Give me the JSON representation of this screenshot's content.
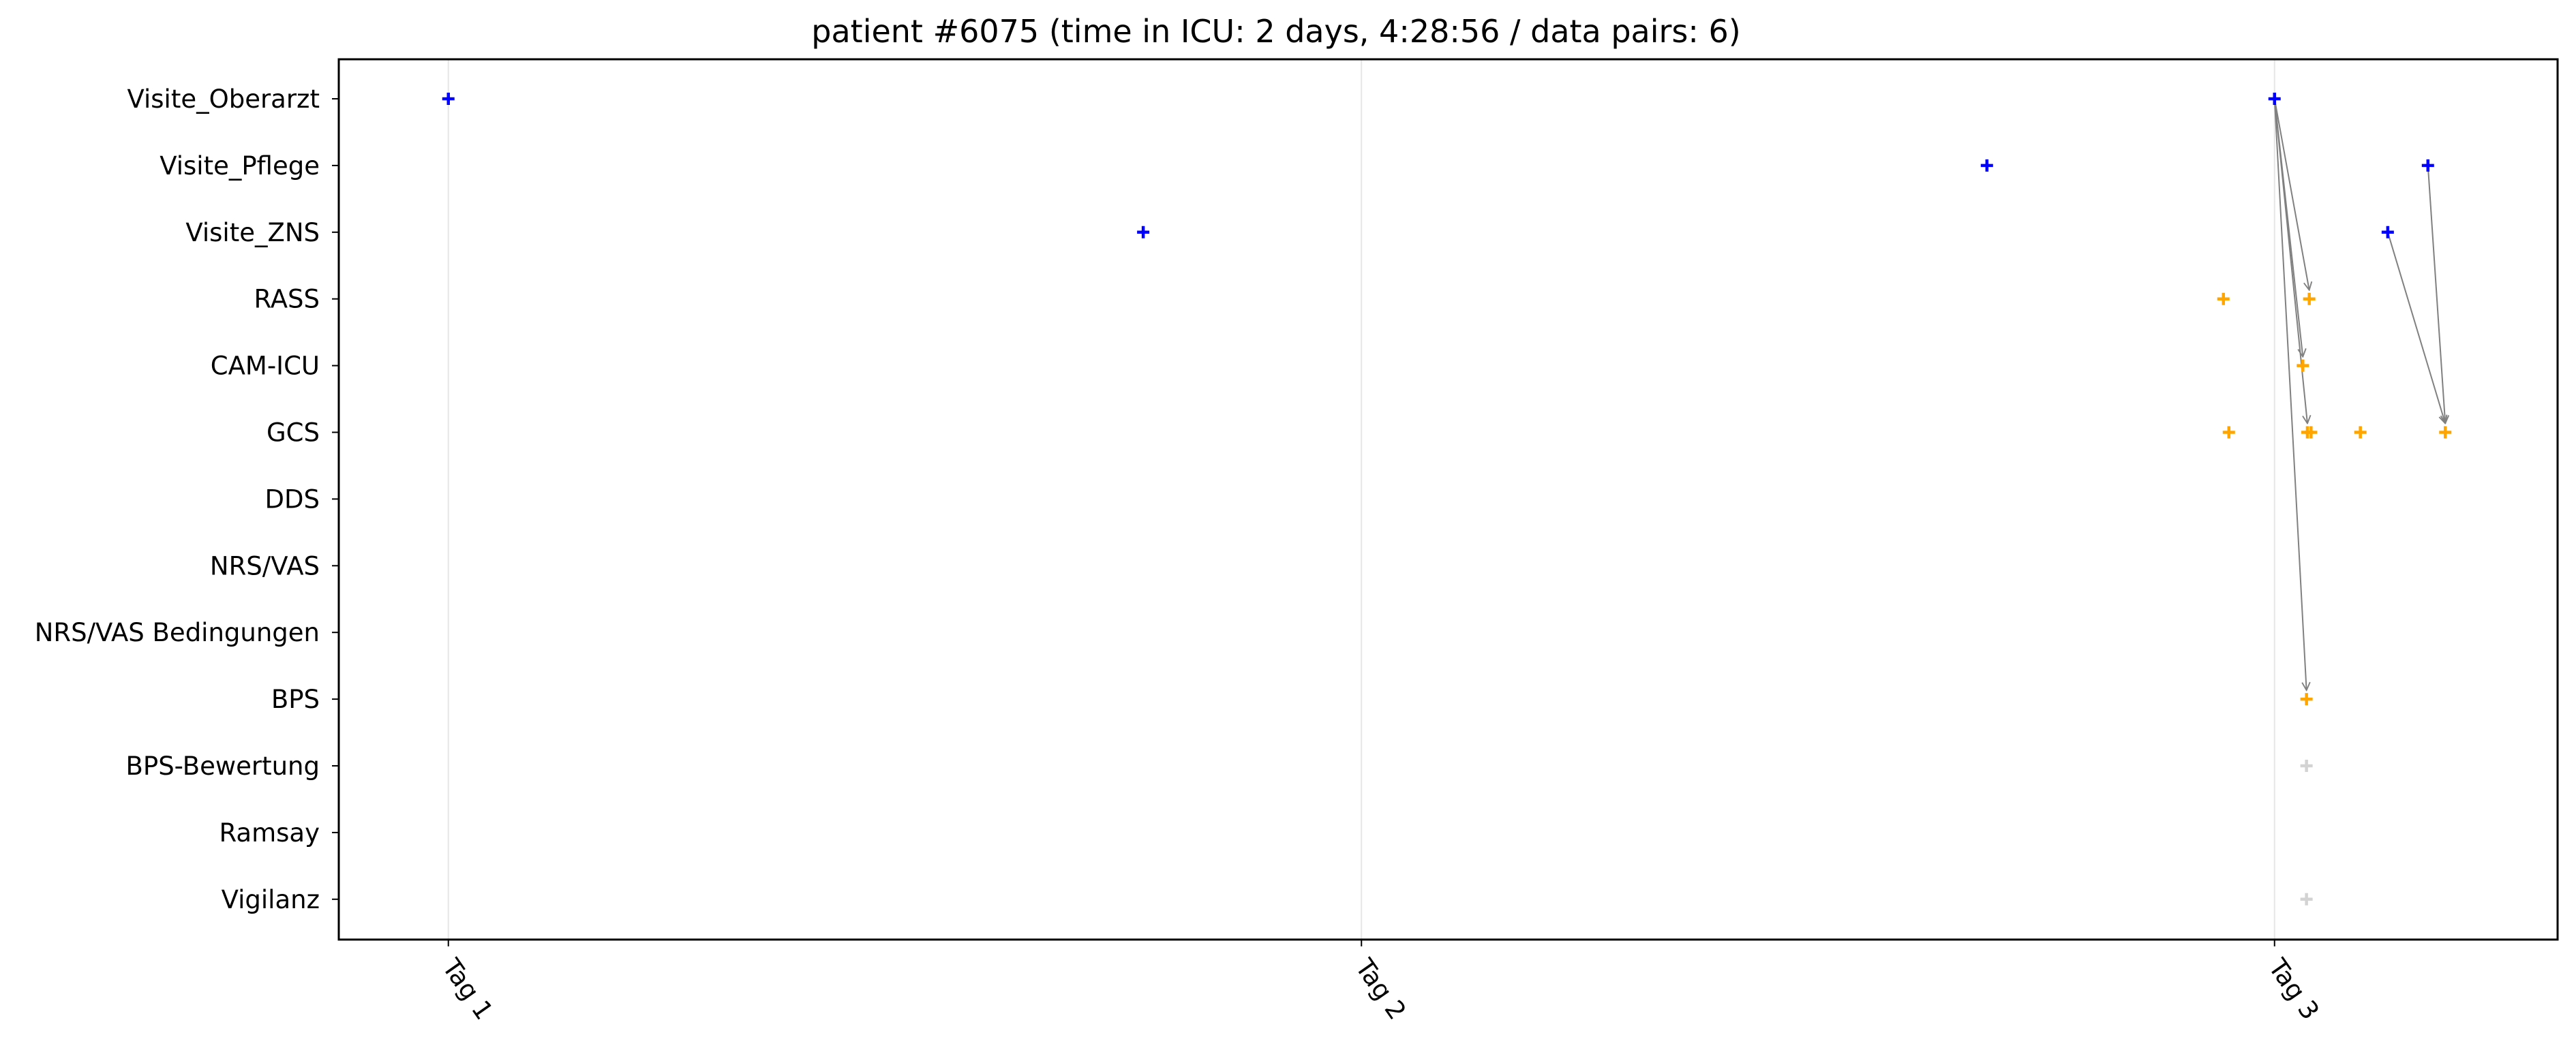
{
  "chart_data": {
    "type": "scatter",
    "title": "patient #6075 (time in ICU: 2 days, 4:28:56 / data pairs: 6)",
    "xlabel": "",
    "ylabel": "",
    "x_unit": "days since admission (Tag 1 = 0)",
    "xlim": [
      -0.12,
      2.31
    ],
    "x_ticks": [
      {
        "value": 0,
        "label": "Tag 1"
      },
      {
        "value": 1,
        "label": "Tag 2"
      },
      {
        "value": 2,
        "label": "Tag 3"
      }
    ],
    "categories": [
      "Visite_Oberarzt",
      "Visite_Pflege",
      "Visite_ZNS",
      "RASS",
      "CAM-ICU",
      "GCS",
      "DDS",
      "NRS/VAS",
      "NRS/VAS Bedingungen",
      "BPS",
      "BPS-Bewertung",
      "Ramsay",
      "Vigilanz"
    ],
    "grid": "vertical at x ticks",
    "series": [
      {
        "color": "#0000ff",
        "points": [
          {
            "x": 0.0,
            "y": "Visite_Oberarzt"
          },
          {
            "x": 2.0,
            "y": "Visite_Oberarzt"
          },
          {
            "x": 1.685,
            "y": "Visite_Pflege"
          },
          {
            "x": 2.168,
            "y": "Visite_Pflege"
          },
          {
            "x": 0.761,
            "y": "Visite_ZNS"
          },
          {
            "x": 2.124,
            "y": "Visite_ZNS"
          }
        ]
      },
      {
        "color": "#ffa500",
        "points": [
          {
            "x": 1.944,
            "y": "RASS"
          },
          {
            "x": 2.038,
            "y": "RASS"
          },
          {
            "x": 2.031,
            "y": "CAM-ICU"
          },
          {
            "x": 1.95,
            "y": "GCS"
          },
          {
            "x": 2.036,
            "y": "GCS"
          },
          {
            "x": 2.04,
            "y": "GCS"
          },
          {
            "x": 2.094,
            "y": "GCS"
          },
          {
            "x": 2.187,
            "y": "GCS"
          },
          {
            "x": 2.035,
            "y": "BPS"
          }
        ]
      },
      {
        "color": "#d3d3d3",
        "points": [
          {
            "x": 2.035,
            "y": "BPS-Bewertung"
          },
          {
            "x": 2.035,
            "y": "Vigilanz"
          }
        ]
      }
    ],
    "pairs": [
      {
        "from": {
          "x": 2.0,
          "y": "Visite_Oberarzt"
        },
        "to": {
          "x": 2.038,
          "y": "RASS"
        }
      },
      {
        "from": {
          "x": 2.0,
          "y": "Visite_Oberarzt"
        },
        "to": {
          "x": 2.031,
          "y": "CAM-ICU"
        }
      },
      {
        "from": {
          "x": 2.0,
          "y": "Visite_Oberarzt"
        },
        "to": {
          "x": 2.036,
          "y": "GCS"
        }
      },
      {
        "from": {
          "x": 2.0,
          "y": "Visite_Oberarzt"
        },
        "to": {
          "x": 2.035,
          "y": "BPS"
        }
      },
      {
        "from": {
          "x": 2.124,
          "y": "Visite_ZNS"
        },
        "to": {
          "x": 2.187,
          "y": "GCS"
        }
      },
      {
        "from": {
          "x": 2.168,
          "y": "Visite_Pflege"
        },
        "to": {
          "x": 2.187,
          "y": "GCS"
        }
      }
    ]
  }
}
